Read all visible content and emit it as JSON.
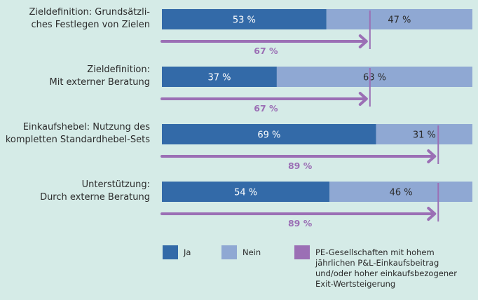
{
  "chart_data": {
    "type": "bar",
    "orientation": "horizontal",
    "stacked": true,
    "categories": [
      [
        "Zieldefinition: Grundsätzli-",
        "ches Festlegen von Zielen"
      ],
      [
        "Zieldefinition:",
        "Mit externer Beratung"
      ],
      [
        "Einkaufshebel: Nutzung des",
        "kompletten Standardhebel-Sets"
      ],
      [
        "Unterstützung:",
        "Durch externe Beratung"
      ]
    ],
    "series": [
      {
        "name": "Ja",
        "color": "#336aa8",
        "values": [
          53,
          37,
          69,
          54
        ],
        "labels": [
          "53 %",
          "37 %",
          "69 %",
          "54 %"
        ]
      },
      {
        "name": "Nein",
        "color": "#8fa8d3",
        "values": [
          47,
          63,
          31,
          46
        ],
        "labels": [
          "47 %",
          "63 %",
          "31 %",
          "46 %"
        ]
      }
    ],
    "reference": {
      "name": "PE-Gesellschaften mit hohem jährlichen P&L-Einkaufsbeitrag und/oder hoher einkaufsbezogener Exit-Wertsteigerung",
      "color": "#9b6fb5",
      "values": [
        67,
        67,
        89,
        89
      ],
      "labels": [
        "67 %",
        "67 %",
        "89 %",
        "89 %"
      ]
    },
    "xlim": [
      0,
      100
    ],
    "legend_position": "bottom",
    "legend": [
      {
        "label": [
          "Ja"
        ],
        "color": "#336aa8"
      },
      {
        "label": [
          "Nein"
        ],
        "color": "#8fa8d3"
      },
      {
        "label": [
          "PE-Gesellschaften mit hohem",
          "jährlichen P&L-Einkaufsbeitrag",
          "und/oder hoher einkaufsbezogener",
          "Exit-Wertsteigerung"
        ],
        "color": "#9b6fb5"
      }
    ]
  }
}
